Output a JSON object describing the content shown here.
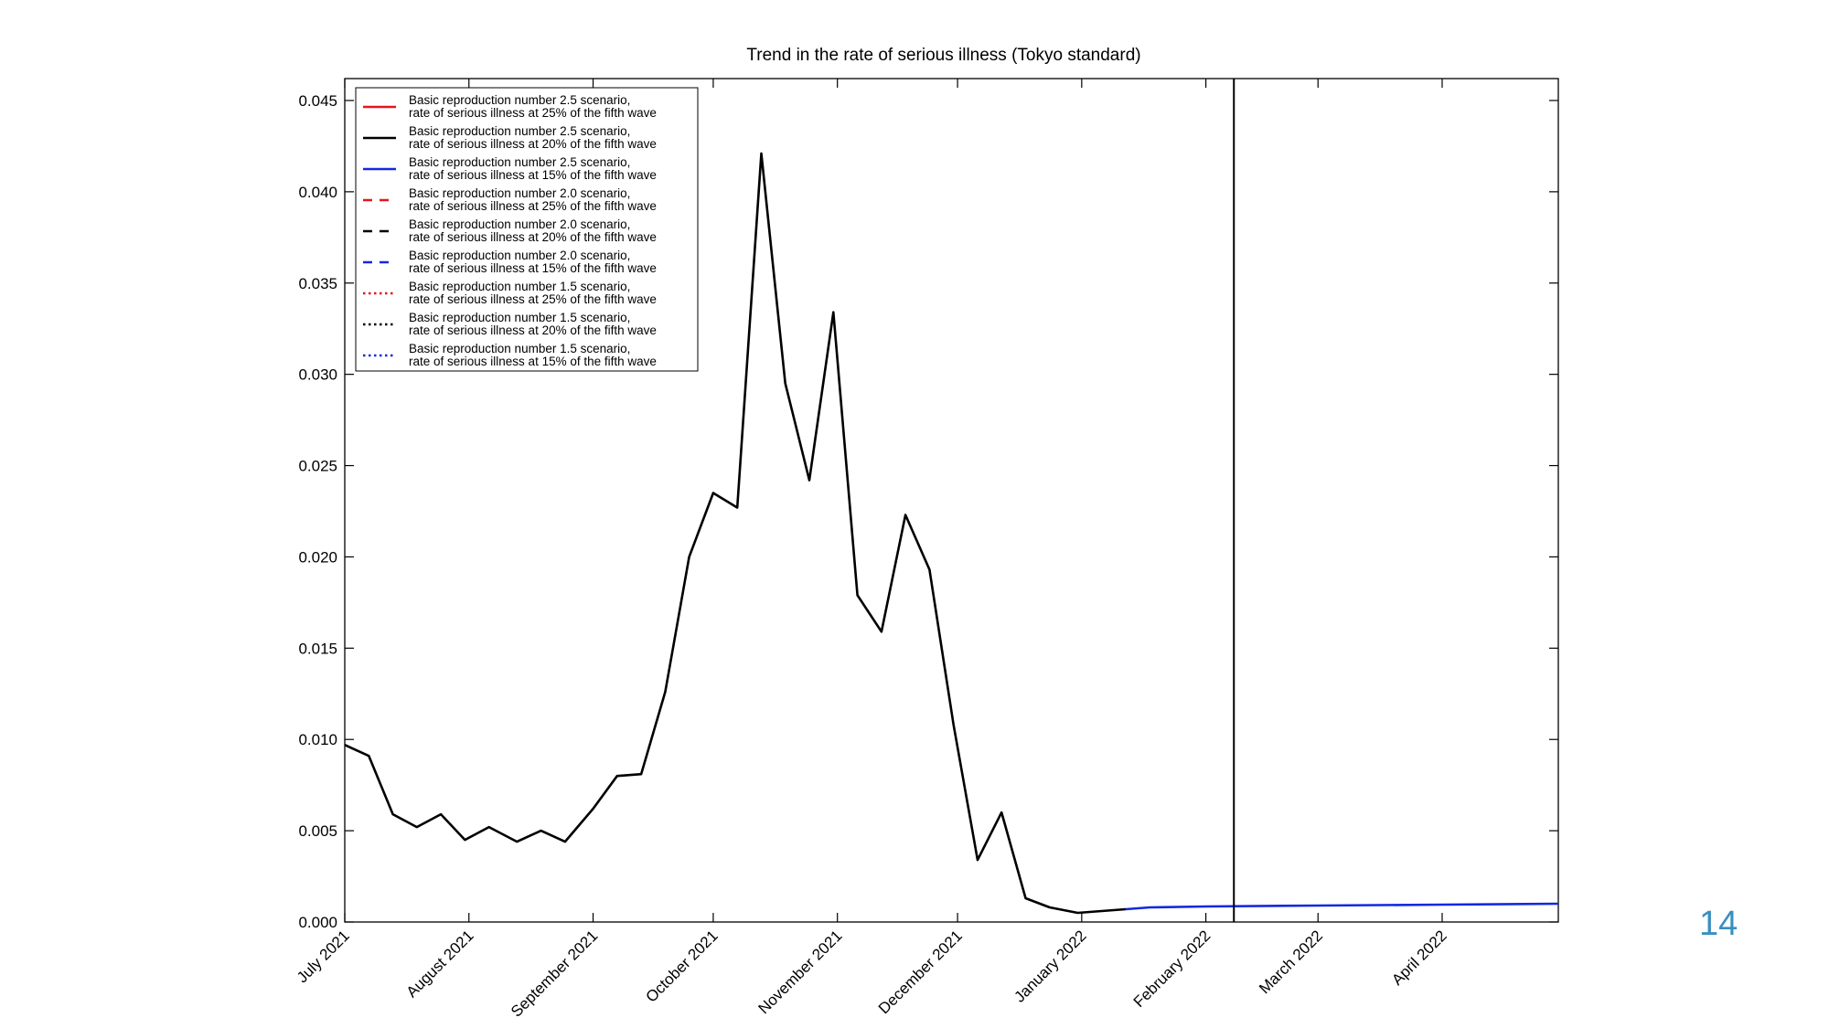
{
  "slide": {
    "page_number": "14"
  },
  "chart_data": {
    "type": "line",
    "title": "Trend in the rate of serious illness (Tokyo standard)",
    "xlabel": "",
    "ylabel": "",
    "xlim": [
      "2021-07-01",
      "2022-04-30"
    ],
    "ylim": [
      0,
      0.0462
    ],
    "y_ticks": [
      0.0,
      0.005,
      0.01,
      0.015,
      0.02,
      0.025,
      0.03,
      0.035,
      0.04,
      0.045
    ],
    "y_tick_labels": [
      "0.000",
      "0.005",
      "0.010",
      "0.015",
      "0.020",
      "0.025",
      "0.030",
      "0.035",
      "0.040",
      "0.045"
    ],
    "x_ticks": [
      "2021-07-01",
      "2021-08-01",
      "2021-09-01",
      "2021-10-01",
      "2021-11-01",
      "2021-12-01",
      "2022-01-01",
      "2022-02-01",
      "2022-03-01",
      "2022-04-01"
    ],
    "x_tick_labels": [
      "July 2021",
      "August 2021",
      "September 2021",
      "October 2021",
      "November 2021",
      "December 2021",
      "January 2022",
      "February 2022",
      "March 2022",
      "April 2022"
    ],
    "vertical_line_x": "2022-02-08",
    "grid": false,
    "legend_position": "top-left",
    "legend": [
      {
        "label": "Basic reproduction number 2.5 scenario,\nrate of serious illness at 25% of the fifth wave",
        "color": "#e8141c",
        "style": "solid"
      },
      {
        "label": "Basic reproduction number 2.5 scenario,\nrate of serious illness at 20% of the fifth wave",
        "color": "#000000",
        "style": "solid"
      },
      {
        "label": "Basic reproduction number 2.5 scenario,\nrate of serious illness at 15% of the fifth wave",
        "color": "#1428e0",
        "style": "solid"
      },
      {
        "label": "Basic reproduction number 2.0 scenario,\nrate of serious illness at 25% of the fifth wave",
        "color": "#e8141c",
        "style": "dashed"
      },
      {
        "label": "Basic reproduction number 2.0 scenario,\nrate of serious illness at 20% of the fifth wave",
        "color": "#000000",
        "style": "dashed"
      },
      {
        "label": "Basic reproduction number 2.0 scenario,\nrate of serious illness at 15% of the fifth wave",
        "color": "#1428e0",
        "style": "dashed"
      },
      {
        "label": "Basic reproduction number 1.5 scenario,\nrate of serious illness at 25% of the fifth wave",
        "color": "#e8141c",
        "style": "dotted"
      },
      {
        "label": "Basic reproduction number 1.5 scenario,\nrate of serious illness at 20% of the fifth wave",
        "color": "#000000",
        "style": "dotted"
      },
      {
        "label": "Basic reproduction number 1.5 scenario,\nrate of serious illness at 15% of the fifth wave",
        "color": "#1428e0",
        "style": "dotted"
      }
    ],
    "series": [
      {
        "color": "#000000",
        "style": "solid",
        "points": [
          [
            "2021-07-01",
            0.0097
          ],
          [
            "2021-07-07",
            0.0091
          ],
          [
            "2021-07-13",
            0.0059
          ],
          [
            "2021-07-19",
            0.0052
          ],
          [
            "2021-07-25",
            0.0059
          ],
          [
            "2021-07-31",
            0.0045
          ],
          [
            "2021-08-06",
            0.0052
          ],
          [
            "2021-08-13",
            0.0044
          ],
          [
            "2021-08-19",
            0.005
          ],
          [
            "2021-08-25",
            0.0044
          ],
          [
            "2021-09-01",
            0.0062
          ],
          [
            "2021-09-07",
            0.008
          ],
          [
            "2021-09-13",
            0.0081
          ],
          [
            "2021-09-19",
            0.0126
          ],
          [
            "2021-09-25",
            0.02
          ],
          [
            "2021-10-01",
            0.0235
          ],
          [
            "2021-10-07",
            0.0227
          ],
          [
            "2021-10-13",
            0.0421
          ],
          [
            "2021-10-19",
            0.0295
          ],
          [
            "2021-10-25",
            0.0242
          ],
          [
            "2021-10-31",
            0.0334
          ],
          [
            "2021-11-06",
            0.0179
          ],
          [
            "2021-11-12",
            0.0159
          ],
          [
            "2021-11-18",
            0.0223
          ],
          [
            "2021-11-24",
            0.0193
          ],
          [
            "2021-11-30",
            0.0108
          ],
          [
            "2021-12-06",
            0.0034
          ],
          [
            "2021-12-12",
            0.006
          ],
          [
            "2021-12-18",
            0.0013
          ],
          [
            "2021-12-24",
            0.0008
          ],
          [
            "2021-12-31",
            0.0005
          ],
          [
            "2022-01-06",
            0.0006
          ],
          [
            "2022-01-12",
            0.0007
          ]
        ]
      },
      {
        "color": "#1428e0",
        "style": "solid",
        "points": [
          [
            "2022-01-12",
            0.0007
          ],
          [
            "2022-01-18",
            0.0008
          ],
          [
            "2022-02-01",
            0.00085
          ],
          [
            "2022-03-01",
            0.0009
          ],
          [
            "2022-04-01",
            0.00095
          ],
          [
            "2022-04-30",
            0.001
          ]
        ]
      }
    ]
  }
}
